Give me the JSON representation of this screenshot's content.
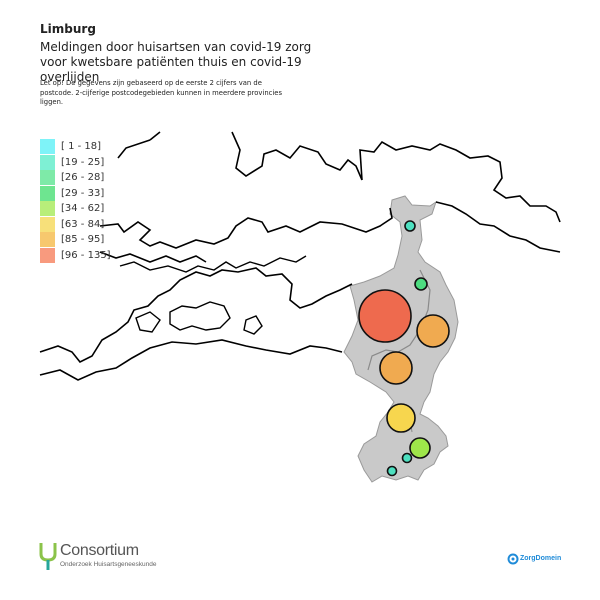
{
  "header": {
    "title": "Limburg",
    "subtitle": "Meldingen door huisartsen van covid-19 zorg voor kwetsbare patiënten thuis en covid-19 overlijden",
    "note": "Let op! De gegevens zijn gebaseerd op de eerste 2 cijfers van de postcode. 2-cijferige postcodegebieden kunnen in meerdere provincies liggen."
  },
  "legend": [
    {
      "label": "[ 1 - 18]",
      "color": "#7ef3f8"
    },
    {
      "label": "[19 - 25]",
      "color": "#7ef0d4"
    },
    {
      "label": "[26 - 28]",
      "color": "#7eeaa8"
    },
    {
      "label": "[29 - 33]",
      "color": "#6ee590"
    },
    {
      "label": "[34 - 62]",
      "color": "#b8ee7a"
    },
    {
      "label": "[63 - 84]",
      "color": "#f7e07a"
    },
    {
      "label": "[85 - 95]",
      "color": "#f7c86e"
    },
    {
      "label": "[96 - 135]",
      "color": "#f89a7e"
    }
  ],
  "map_data": {
    "region": "Limburg",
    "points": [
      {
        "class": "[19 - 25]",
        "color": "#4de0c0"
      },
      {
        "class": "[29 - 33]",
        "color": "#4ddc80"
      },
      {
        "class": "[96 - 135]",
        "color": "#ee6a4e"
      },
      {
        "class": "[85 - 95]",
        "color": "#f0aa50"
      },
      {
        "class": "[85 - 95]",
        "color": "#f0aa50"
      },
      {
        "class": "[63 - 84]",
        "color": "#f7d64e"
      },
      {
        "class": "[34 - 62]",
        "color": "#9ee64a"
      },
      {
        "class": "[19 - 25]",
        "color": "#4de0c0"
      },
      {
        "class": "[19 - 25]",
        "color": "#4de0c0"
      }
    ]
  },
  "footer": {
    "consortium_logo": "Consortium",
    "consortium_sub": "Onderzoek Huisartsgeneeskunde",
    "zorgdomein_logo": "ZorgDomein"
  }
}
